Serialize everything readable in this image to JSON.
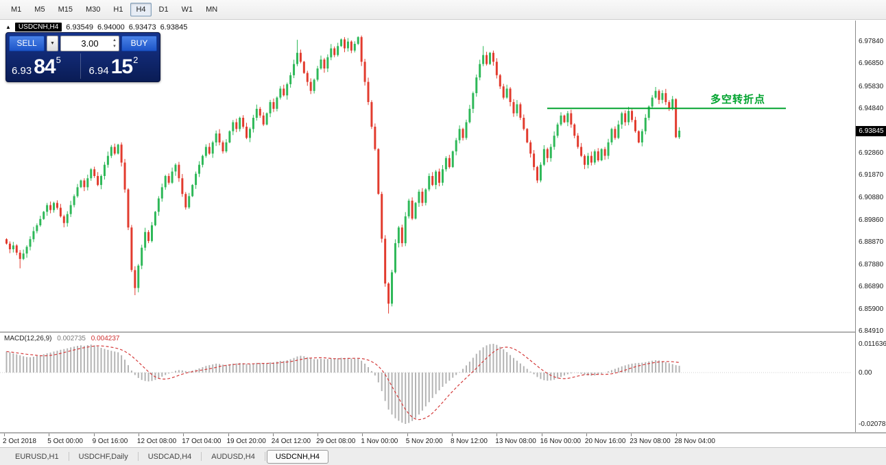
{
  "toolbar": {
    "timeframes": [
      "M1",
      "M5",
      "M15",
      "M30",
      "H1",
      "H4",
      "D1",
      "W1",
      "MN"
    ],
    "active": "H4"
  },
  "chart_header": {
    "symbol": "USDCNH,H4",
    "open": "6.93549",
    "high": "6.94000",
    "low": "6.93473",
    "close": "6.93845"
  },
  "trade_panel": {
    "sell_label": "SELL",
    "buy_label": "BUY",
    "lot": "3.00",
    "sell_price_small": "6.93",
    "sell_price_big": "84",
    "sell_price_sup": "5",
    "buy_price_small": "6.94",
    "buy_price_big": "15",
    "buy_price_sup": "2"
  },
  "icons": {
    "window": "▲",
    "dropdown": "▼",
    "spin_up": "▲",
    "spin_down": "▼"
  },
  "price_axis": {
    "labels": [
      "6.97840",
      "6.96850",
      "6.95830",
      "6.94840",
      "6.92860",
      "6.91870",
      "6.90880",
      "6.89860",
      "6.88870",
      "6.87880",
      "6.86890",
      "6.85900",
      "6.84910"
    ],
    "current": "6.93845"
  },
  "time_axis": {
    "labels": [
      "2 Oct 2018",
      "5 Oct 00:00",
      "9 Oct 16:00",
      "12 Oct 08:00",
      "17 Oct 04:00",
      "19 Oct 20:00",
      "24 Oct 12:00",
      "29 Oct 08:00",
      "1 Nov 00:00",
      "5 Nov 20:00",
      "8 Nov 12:00",
      "13 Nov 08:00",
      "16 Nov 00:00",
      "20 Nov 16:00",
      "23 Nov 08:00",
      "28 Nov 04:00"
    ]
  },
  "macd_header": {
    "name": "MACD(12,26,9)",
    "value_main": "0.002735",
    "value_signal": "0.004237"
  },
  "macd_axis": {
    "labels": [
      "0.011636",
      "0.00",
      "-0.020786"
    ]
  },
  "annotation": {
    "text": "多空转折点",
    "price": 6.9484
  },
  "tabs": {
    "items": [
      "EURUSD,H1",
      "USDCHF,Daily",
      "USDCAD,H4",
      "AUDUSD,H4",
      "USDCNH,H4"
    ],
    "active": "USDCNH,H4"
  },
  "colors": {
    "up": "#2eb858",
    "down": "#e23b2e",
    "macd_bar": "#b3b3b3",
    "macd_signal": "#d43a3a",
    "hline": "#00a32e",
    "annotation_text": "#00a32e",
    "price_tag_bg": "#000000",
    "panel_blue": "#122b74",
    "button_blue": "#2a63d4"
  },
  "chart_data": [
    {
      "type": "candlestick",
      "symbol": "USDCNH",
      "timeframe": "H4",
      "x_range": [
        "2 Oct 2018",
        "28 Nov 2018"
      ],
      "price_range": [
        6.8488,
        6.9876
      ],
      "first_open": 6.89,
      "closes": [
        6.888,
        6.8855,
        6.8872,
        6.884,
        6.8812,
        6.8836,
        6.8866,
        6.89,
        6.8936,
        6.8962,
        6.899,
        6.9022,
        6.9052,
        6.903,
        6.9062,
        6.904,
        6.9002,
        6.8972,
        6.9012,
        6.9052,
        6.9092,
        6.9132,
        6.9162,
        6.9132,
        6.9172,
        6.9212,
        6.9182,
        6.9142,
        6.9182,
        6.9232,
        6.9272,
        6.9312,
        6.9282,
        6.9322,
        6.9242,
        6.9122,
        6.8952,
        6.8762,
        6.8682,
        6.8782,
        6.8862,
        6.8932,
        6.8892,
        6.8962,
        6.9022,
        6.9082,
        6.9132,
        6.9182,
        6.9152,
        6.9202,
        6.9232,
        6.9172,
        6.9102,
        6.9042,
        6.9092,
        6.9142,
        6.9192,
        6.9232,
        6.9272,
        6.9312,
        6.9282,
        6.9332,
        6.9372,
        6.9332,
        6.9292,
        6.9332,
        6.9382,
        6.9422,
        6.9392,
        6.9442,
        6.9402,
        6.9352,
        6.9392,
        6.9442,
        6.9482,
        6.9452,
        6.9412,
        6.9462,
        6.9512,
        6.9482,
        6.9532,
        6.9572,
        6.9542,
        6.9592,
        6.9632,
        6.9682,
        6.9732,
        6.9692,
        6.9642,
        6.9602,
        6.9562,
        6.9612,
        6.9662,
        6.9702,
        6.9662,
        6.9712,
        6.9752,
        6.9722,
        6.9762,
        6.9792,
        6.9752,
        6.9782,
        6.9742,
        6.9772,
        6.9802,
        6.9692,
        6.9602,
        6.9512,
        6.9402,
        6.9302,
        6.9102,
        6.8902,
        6.8702,
        6.8612,
        6.8752,
        6.8882,
        6.8952,
        6.8882,
        6.9002,
        6.9072,
        6.8992,
        6.9062,
        6.9112,
        6.9062,
        6.9122,
        6.9182,
        6.9142,
        6.9202,
        6.9152,
        6.9212,
        6.9262,
        6.9222,
        6.9292,
        6.9342,
        6.9392,
        6.9352,
        6.9422,
        6.9482,
        6.9552,
        6.9622,
        6.9682,
        6.9722,
        6.9682,
        6.9732,
        6.9692,
        6.9632,
        6.9582,
        6.9532,
        6.9572,
        6.9512,
        6.9462,
        6.9502,
        6.9442,
        6.9392,
        6.9332,
        6.9282,
        6.9222,
        6.9162,
        6.9232,
        6.9302,
        6.9262,
        6.9312,
        6.9362,
        6.9412,
        6.9452,
        6.9422,
        6.9462,
        6.9412,
        6.9362,
        6.9312,
        6.9272,
        6.9232,
        6.9272,
        6.9242,
        6.9292,
        6.9252,
        6.9302,
        6.9272,
        6.9332,
        6.9392,
        6.9352,
        6.9412,
        6.9462,
        6.9422,
        6.9472,
        6.9432,
        6.9382,
        6.9332,
        6.9382,
        6.9442,
        6.9492,
        6.9532,
        6.9562,
        6.9522,
        6.9552,
        6.9512,
        6.9482,
        6.9525,
        6.9355,
        6.93845
      ],
      "wick_overrides": {
        "4": [
          6.877,
          null
        ],
        "38": [
          6.865,
          null
        ],
        "86": [
          null,
          6.979
        ],
        "104": [
          null,
          6.9806
        ],
        "113": [
          6.8568,
          null
        ],
        "114": [
          6.86,
          null
        ],
        "141": [
          null,
          6.9762
        ],
        "199": [
          6.93473,
          6.94
        ]
      },
      "last_candle_ohlc": [
        6.93549,
        6.94,
        6.93473,
        6.93845
      ],
      "hline": {
        "price": 6.9484,
        "label": "多空转折点"
      }
    },
    {
      "type": "bar",
      "name": "MACD(12,26,9)",
      "scale": 0.001,
      "values": [
        8.5,
        8.2,
        7.8,
        7.4,
        7.0,
        6.6,
        6.3,
        6.2,
        6.4,
        6.7,
        7.0,
        7.4,
        7.8,
        8.1,
        8.5,
        8.8,
        9.2,
        9.5,
        9.8,
        10.2,
        10.5,
        10.8,
        11.0,
        10.8,
        11.1,
        11.3,
        11.0,
        10.5,
        10.0,
        9.6,
        9.2,
        8.8,
        8.5,
        8.2,
        7.0,
        5.2,
        3.0,
        0.8,
        -1.0,
        -2.2,
        -3.0,
        -3.4,
        -3.6,
        -3.4,
        -3.0,
        -2.4,
        -1.7,
        -1.0,
        -0.4,
        0.2,
        0.7,
        1.0,
        0.9,
        0.6,
        0.5,
        0.8,
        1.2,
        1.7,
        2.2,
        2.7,
        3.0,
        3.3,
        3.6,
        3.5,
        3.2,
        3.1,
        3.3,
        3.6,
        3.7,
        3.9,
        3.8,
        3.5,
        3.4,
        3.6,
        3.9,
        3.9,
        3.7,
        3.8,
        4.1,
        4.1,
        4.4,
        4.7,
        4.7,
        5.0,
        5.4,
        5.9,
        6.5,
        6.8,
        6.6,
        6.2,
        5.7,
        5.4,
        5.4,
        5.6,
        5.4,
        5.5,
        5.7,
        5.7,
        5.8,
        6.0,
        5.9,
        5.9,
        5.7,
        5.6,
        5.7,
        4.8,
        3.6,
        2.2,
        0.6,
        -1.2,
        -4.0,
        -7.5,
        -11.5,
        -15.0,
        -17.0,
        -18.5,
        -19.5,
        -20.3,
        -20.786,
        -20.4,
        -19.6,
        -18.4,
        -17.0,
        -15.4,
        -13.7,
        -12.0,
        -10.3,
        -8.7,
        -7.2,
        -5.8,
        -4.5,
        -3.3,
        -2.1,
        -1.0,
        0.2,
        1.5,
        2.9,
        4.4,
        6.0,
        7.6,
        9.0,
        10.2,
        11.0,
        11.5,
        11.636,
        11.2,
        10.4,
        9.4,
        8.3,
        7.1,
        5.9,
        4.8,
        3.7,
        2.6,
        1.5,
        0.4,
        -0.7,
        -1.8,
        -2.6,
        -3.1,
        -3.3,
        -3.2,
        -2.9,
        -2.4,
        -1.8,
        -1.2,
        -0.7,
        -0.3,
        -0.1,
        -0.2,
        -0.5,
        -0.9,
        -1.2,
        -1.3,
        -1.2,
        -0.9,
        -0.5,
        0.0,
        0.5,
        1.0,
        1.5,
        2.0,
        2.5,
        2.9,
        3.3,
        3.6,
        3.8,
        3.9,
        4.0,
        4.2,
        4.5,
        4.8,
        5.0,
        4.9,
        4.6,
        4.2,
        3.8,
        3.4,
        3.0,
        2.735
      ],
      "signal": {
        "period": 9,
        "style": "sma-of-histogram",
        "current": 0.004237
      },
      "current_macd": 0.002735,
      "y_range": [
        -0.020786,
        0.011636
      ]
    }
  ]
}
